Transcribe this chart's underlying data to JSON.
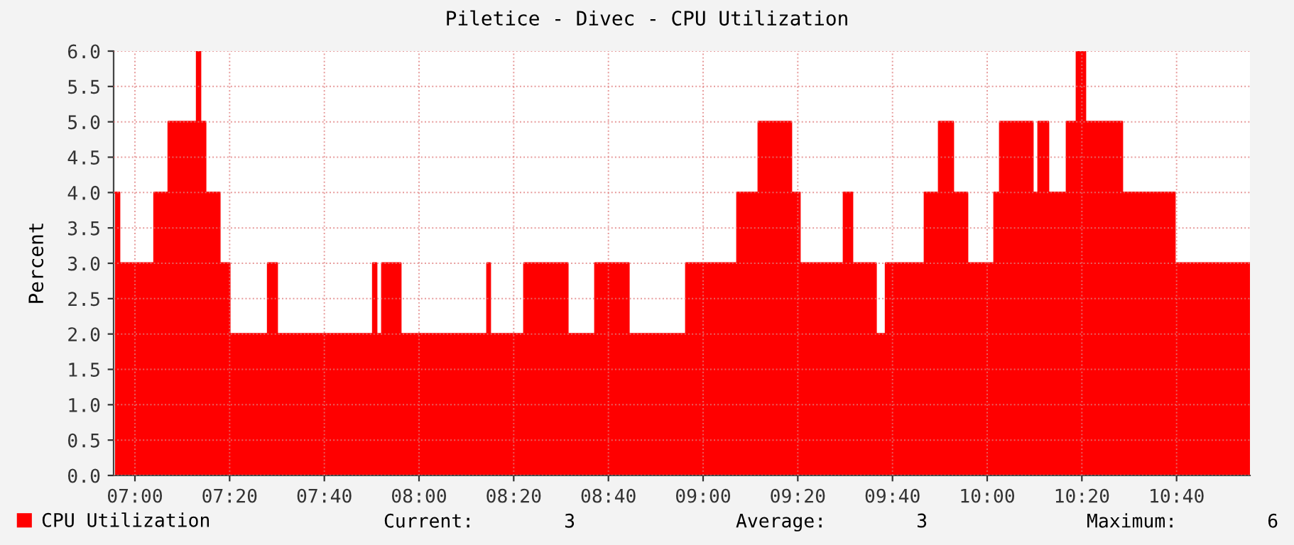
{
  "chart_data": {
    "type": "area",
    "title": "Piletice - Divec - CPU Utilization",
    "ylabel": "Percent",
    "x": [
      6.93,
      6.945,
      6.945,
      7.068,
      7.068,
      7.118,
      7.118,
      7.218,
      7.218,
      7.23,
      7.23,
      7.248,
      7.248,
      7.298,
      7.298,
      7.333,
      7.333,
      7.468,
      7.468,
      7.5,
      7.5,
      7.838,
      7.838,
      7.85,
      7.85,
      7.87,
      7.87,
      7.935,
      7.935,
      8.24,
      8.24,
      8.25,
      8.25,
      8.37,
      8.37,
      8.523,
      8.523,
      8.62,
      8.62,
      8.738,
      8.738,
      8.94,
      8.94,
      9.12,
      9.12,
      9.195,
      9.195,
      9.31,
      9.31,
      9.34,
      9.34,
      9.495,
      9.495,
      9.525,
      9.525,
      9.608,
      9.608,
      9.643,
      9.643,
      9.78,
      9.78,
      9.83,
      9.83,
      9.88,
      9.88,
      9.93,
      9.93,
      10.025,
      10.025,
      10.045,
      10.045,
      10.16,
      10.16,
      10.18,
      10.18,
      10.215,
      10.215,
      10.28,
      10.28,
      10.315,
      10.315,
      10.345,
      10.345,
      10.475,
      10.475,
      10.66,
      10.66,
      10.925
    ],
    "series": [
      {
        "name": "CPU Utilization",
        "color": "#ff0000",
        "values": [
          4,
          4,
          3,
          3,
          4,
          4,
          5,
          5,
          6,
          6,
          5,
          5,
          4,
          4,
          3,
          3,
          2,
          2,
          3,
          3,
          2,
          2,
          3,
          3,
          2,
          2,
          3,
          3,
          2,
          2,
          3,
          3,
          2,
          2,
          3,
          3,
          2,
          2,
          3,
          3,
          2,
          2,
          3,
          3,
          4,
          4,
          5,
          5,
          4,
          4,
          3,
          3,
          4,
          4,
          3,
          3,
          2,
          2,
          3,
          3,
          4,
          4,
          5,
          5,
          4,
          4,
          3,
          3,
          4,
          4,
          5,
          5,
          4,
          4,
          5,
          5,
          4,
          4,
          5,
          5,
          6,
          6,
          5,
          5,
          4,
          4,
          3,
          3
        ]
      }
    ],
    "xlim": [
      6.925,
      10.925
    ],
    "xticks": [
      {
        "value": 7,
        "label": "07:00"
      },
      {
        "value": 7.3333,
        "label": "07:20"
      },
      {
        "value": 7.6667,
        "label": "07:40"
      },
      {
        "value": 8,
        "label": "08:00"
      },
      {
        "value": 8.3333,
        "label": "08:20"
      },
      {
        "value": 8.6667,
        "label": "08:40"
      },
      {
        "value": 9,
        "label": "09:00"
      },
      {
        "value": 9.3333,
        "label": "09:20"
      },
      {
        "value": 9.6667,
        "label": "09:40"
      },
      {
        "value": 10,
        "label": "10:00"
      },
      {
        "value": 10.3333,
        "label": "10:20"
      },
      {
        "value": 10.6667,
        "label": "10:40"
      }
    ],
    "ylim": [
      0,
      6
    ],
    "yticks": [
      {
        "value": 0,
        "label": "0.0"
      },
      {
        "value": 0.5,
        "label": "0.5"
      },
      {
        "value": 1,
        "label": "1.0"
      },
      {
        "value": 1.5,
        "label": "1.5"
      },
      {
        "value": 2,
        "label": "2.0"
      },
      {
        "value": 2.5,
        "label": "2.5"
      },
      {
        "value": 3,
        "label": "3.0"
      },
      {
        "value": 3.5,
        "label": "3.5"
      },
      {
        "value": 4,
        "label": "4.0"
      },
      {
        "value": 4.5,
        "label": "4.5"
      },
      {
        "value": 5,
        "label": "5.0"
      },
      {
        "value": 5.5,
        "label": "5.5"
      },
      {
        "value": 6,
        "label": "6.0"
      }
    ],
    "grid": true,
    "legend": "bottom left",
    "annotations": [
      "Current:        3",
      "Average:        3",
      "Maximum:        6"
    ]
  }
}
